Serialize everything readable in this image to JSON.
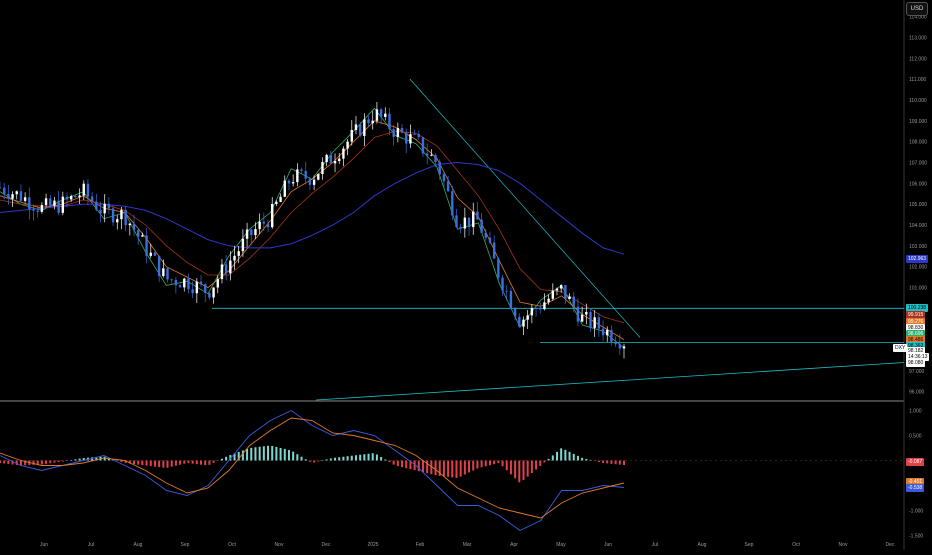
{
  "currency_button": "USD",
  "colors": {
    "background": "#000000",
    "up_candle": "#ffffff",
    "down_candle": "#3a6fe0",
    "ma_orange": "#e07a2a",
    "ma_red": "#a8321e",
    "ma_blue": "#2d38c8",
    "ma_green": "#2fae6a",
    "hline": "#1ec0c8",
    "hist_pos": "#7fd6cf",
    "hist_neg": "#e0414a",
    "macd_line": "#3b5bdb",
    "signal_line": "#e07a2a"
  },
  "x_axis": {
    "labels": [
      "Jun",
      "Jul",
      "Aug",
      "Sep",
      "Oct",
      "Nov",
      "Dec",
      "2025",
      "Feb",
      "Mar",
      "Apr",
      "May",
      "Jun",
      "Jul",
      "Aug",
      "Sep",
      "Oct",
      "Nov",
      "Dec"
    ]
  },
  "price_axis": {
    "ticks": [
      "114.000",
      "113.000",
      "112.000",
      "111.000",
      "110.000",
      "109.000",
      "108.000",
      "107.000",
      "106.000",
      "105.000",
      "104.000",
      "103.000",
      "102.000",
      "101.000",
      "100.000",
      "99.000",
      "98.000",
      "97.000",
      "96.000"
    ]
  },
  "price_tags": [
    {
      "text": "102.963",
      "bg": "#2d38c8",
      "fg": "#ffffff"
    },
    {
      "text": "100.238",
      "bg": "#1ec0c8",
      "fg": "#000000"
    },
    {
      "text": "99.915",
      "bg": "#a8321e",
      "fg": "#ffffff"
    },
    {
      "text": "99.276",
      "bg": "#e07a2a",
      "fg": "#ffffff"
    },
    {
      "text": "98.830",
      "bg": "#ffffff",
      "fg": "#000000"
    },
    {
      "text": "98.696",
      "bg": "#2fae6a",
      "fg": "#ffffff"
    },
    {
      "text": "98.486",
      "bg": "#e07a2a",
      "fg": "#000000"
    },
    {
      "text": "98.363",
      "bg": "#1ec0c8",
      "fg": "#000000"
    },
    {
      "text": "98.182",
      "bg": "#ffffff",
      "fg": "#000000"
    },
    {
      "text": "14:36:13",
      "bg": "#ffffff",
      "fg": "#000000"
    },
    {
      "text": "98.080",
      "bg": "#ffffff",
      "fg": "#000000"
    }
  ],
  "symbol_tag": "DXY",
  "macd_axis": {
    "ticks": [
      "1.000",
      "0.500",
      "0.000",
      "-0.500",
      "-1.000",
      "-1.500"
    ]
  },
  "macd_tags": [
    {
      "text": "-0.087",
      "bg": "#e0414a",
      "fg": "#ffffff"
    },
    {
      "text": "-0.451",
      "bg": "#e07a2a",
      "fg": "#ffffff"
    },
    {
      "text": "-0.538",
      "bg": "#3b5bdb",
      "fg": "#ffffff"
    }
  ],
  "chart_data": [
    {
      "type": "line",
      "title": "",
      "ylim": [
        95.6,
        114.8
      ],
      "x": [
        "2024-05-06",
        "2024-05-20",
        "2024-06-03",
        "2024-06-17",
        "2024-07-01",
        "2024-07-15",
        "2024-07-29",
        "2024-08-12",
        "2024-08-26",
        "2024-09-09",
        "2024-09-23",
        "2024-10-07",
        "2024-10-21",
        "2024-11-04",
        "2024-11-18",
        "2024-12-02",
        "2024-12-16",
        "2024-12-30",
        "2025-01-13",
        "2025-01-27",
        "2025-02-10",
        "2025-02-24",
        "2025-03-10",
        "2025-03-24",
        "2025-04-07",
        "2025-04-21",
        "2025-05-05",
        "2025-05-19",
        "2025-06-02",
        "2025-06-16",
        "2025-06-30"
      ],
      "series": [
        {
          "values": [
            105.6,
            105.0,
            104.7,
            105.2,
            105.6,
            104.3,
            104.6,
            102.7,
            101.1,
            101.3,
            100.7,
            102.5,
            103.8,
            104.6,
            106.7,
            106.2,
            107.5,
            108.5,
            109.6,
            108.3,
            107.9,
            106.8,
            103.8,
            104.1,
            101.2,
            99.1,
            100.4,
            101.1,
            99.2,
            98.9,
            98.1
          ]
        },
        {
          "values": [
            105.4,
            105.1,
            104.8,
            105.0,
            105.4,
            104.8,
            104.6,
            103.4,
            102.0,
            101.5,
            101.0,
            101.8,
            103.0,
            104.2,
            105.6,
            106.2,
            107.0,
            108.0,
            109.0,
            108.7,
            108.1,
            107.2,
            105.3,
            104.4,
            102.3,
            100.3,
            100.1,
            100.6,
            99.7,
            99.1,
            98.5
          ]
        },
        {
          "values": [
            105.2,
            105.0,
            104.9,
            104.9,
            105.2,
            105.0,
            104.7,
            104.0,
            103.0,
            102.2,
            101.6,
            101.6,
            102.4,
            103.4,
            104.6,
            105.5,
            106.3,
            107.2,
            108.2,
            108.5,
            108.4,
            107.8,
            106.6,
            105.4,
            103.8,
            101.9,
            100.9,
            100.8,
            100.2,
            99.6,
            99.3
          ]
        },
        {
          "values": [
            104.6,
            104.7,
            104.8,
            104.9,
            105.0,
            105.0,
            104.9,
            104.7,
            104.3,
            103.8,
            103.3,
            103.0,
            102.9,
            102.9,
            103.1,
            103.5,
            104.0,
            104.6,
            105.4,
            106.0,
            106.5,
            106.9,
            107.0,
            106.9,
            106.6,
            106.0,
            105.2,
            104.4,
            103.6,
            102.9,
            102.6
          ]
        },
        {
          "values": [
            105.8,
            105.4,
            104.8,
            105.0,
            105.6,
            104.6,
            104.5,
            102.9,
            101.4,
            101.3,
            100.8,
            102.2,
            103.5,
            104.4,
            106.3,
            106.3,
            107.3,
            108.3,
            109.4,
            108.5,
            108.0,
            107.0,
            104.2,
            104.2,
            101.6,
            99.4,
            100.2,
            100.9,
            99.5,
            99.0,
            98.4
          ]
        }
      ]
    },
    {
      "type": "bar",
      "title": "",
      "ylim": [
        -1.55,
        1.15
      ],
      "x": [
        "2024-05-06",
        "2024-05-20",
        "2024-06-03",
        "2024-06-17",
        "2024-07-01",
        "2024-07-15",
        "2024-07-29",
        "2024-08-12",
        "2024-08-26",
        "2024-09-09",
        "2024-09-23",
        "2024-10-07",
        "2024-10-21",
        "2024-11-04",
        "2024-11-18",
        "2024-12-02",
        "2024-12-16",
        "2024-12-30",
        "2025-01-13",
        "2025-01-27",
        "2025-02-10",
        "2025-02-24",
        "2025-03-10",
        "2025-03-24",
        "2025-04-07",
        "2025-04-21",
        "2025-05-05",
        "2025-05-19",
        "2025-06-02",
        "2025-06-16",
        "2025-06-30"
      ],
      "series": [
        {
          "values": [
            -0.05,
            -0.1,
            -0.08,
            -0.02,
            0.05,
            0.08,
            -0.05,
            -0.1,
            -0.15,
            -0.05,
            -0.1,
            0.1,
            0.25,
            0.3,
            0.2,
            -0.05,
            0.05,
            0.1,
            0.15,
            -0.1,
            -0.2,
            -0.3,
            -0.35,
            -0.15,
            -0.05,
            -0.45,
            -0.1,
            0.25,
            0.05,
            -0.05,
            -0.09
          ]
        },
        {
          "values": [
            0.1,
            -0.1,
            -0.2,
            -0.1,
            0.0,
            0.1,
            -0.1,
            -0.3,
            -0.6,
            -0.7,
            -0.5,
            0.0,
            0.5,
            0.8,
            1.0,
            0.7,
            0.5,
            0.6,
            0.5,
            0.2,
            -0.1,
            -0.5,
            -0.9,
            -0.9,
            -1.1,
            -1.4,
            -1.2,
            -0.6,
            -0.6,
            -0.5,
            -0.54
          ]
        },
        {
          "values": [
            0.15,
            0.0,
            -0.1,
            -0.1,
            -0.05,
            0.05,
            0.0,
            -0.2,
            -0.45,
            -0.65,
            -0.55,
            -0.2,
            0.3,
            0.6,
            0.85,
            0.8,
            0.55,
            0.5,
            0.4,
            0.3,
            0.1,
            -0.2,
            -0.55,
            -0.75,
            -0.95,
            -1.05,
            -1.15,
            -0.85,
            -0.65,
            -0.55,
            -0.45
          ]
        }
      ]
    }
  ]
}
